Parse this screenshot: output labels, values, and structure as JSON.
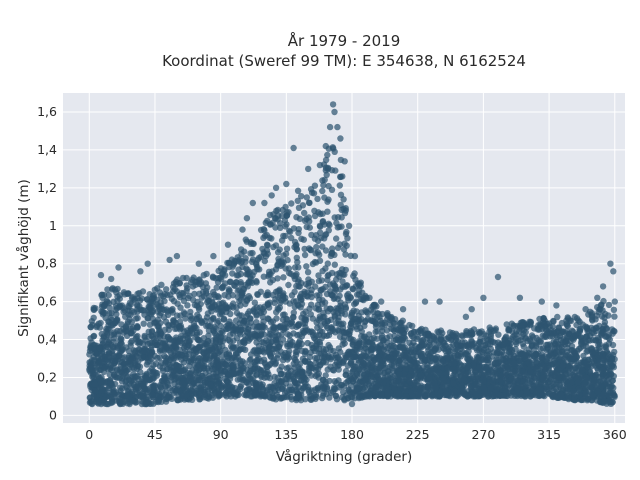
{
  "chart_data": {
    "type": "scatter",
    "title": "År 1979 - 2019",
    "subtitle": "Koordinat (Sweref 99 TM): E 354638, N 6162524",
    "xlabel": "Vågriktning (grader)",
    "ylabel": "Signifikant våghöjd (m)",
    "xlim": [
      -18,
      367
    ],
    "ylim": [
      -0.04,
      1.7
    ],
    "x_ticks": [
      0,
      45,
      90,
      135,
      180,
      225,
      270,
      315,
      360
    ],
    "x_tick_labels": [
      "0",
      "45",
      "90",
      "135",
      "180",
      "225",
      "270",
      "315",
      "360"
    ],
    "y_ticks": [
      0,
      0.2,
      0.4,
      0.6,
      0.8,
      1.0,
      1.2,
      1.4,
      1.6
    ],
    "y_tick_labels": [
      "0",
      "0,2",
      "0,4",
      "0,6",
      "0,8",
      "1",
      "1,2",
      "1,4",
      "1,6"
    ],
    "grid": true,
    "marker_color": "#2e5570",
    "plot_background": "#e5e8ef",
    "envelope": {
      "x": [
        0,
        10,
        20,
        30,
        45,
        60,
        75,
        90,
        100,
        110,
        120,
        130,
        140,
        150,
        160,
        165,
        170,
        175,
        180,
        190,
        200,
        225,
        250,
        270,
        300,
        315,
        330,
        345,
        355,
        360
      ],
      "y_max": [
        0.58,
        0.66,
        0.68,
        0.66,
        0.68,
        0.72,
        0.74,
        0.78,
        0.84,
        0.96,
        1.02,
        1.12,
        1.18,
        1.2,
        1.3,
        1.48,
        1.56,
        1.22,
        0.78,
        0.62,
        0.56,
        0.46,
        0.44,
        0.46,
        0.5,
        0.52,
        0.52,
        0.56,
        0.62,
        0.56
      ],
      "y_min": [
        0.06,
        0.06,
        0.06,
        0.06,
        0.06,
        0.08,
        0.08,
        0.1,
        0.1,
        0.1,
        0.1,
        0.08,
        0.08,
        0.08,
        0.08,
        0.08,
        0.08,
        0.08,
        0.08,
        0.1,
        0.1,
        0.1,
        0.1,
        0.1,
        0.1,
        0.1,
        0.08,
        0.08,
        0.06,
        0.06
      ]
    },
    "outliers": [
      [
        8,
        0.74
      ],
      [
        15,
        0.72
      ],
      [
        20,
        0.78
      ],
      [
        35,
        0.76
      ],
      [
        40,
        0.8
      ],
      [
        55,
        0.82
      ],
      [
        60,
        0.84
      ],
      [
        75,
        0.8
      ],
      [
        85,
        0.84
      ],
      [
        95,
        0.9
      ],
      [
        105,
        0.98
      ],
      [
        108,
        1.04
      ],
      [
        112,
        1.12
      ],
      [
        120,
        1.12
      ],
      [
        125,
        1.16
      ],
      [
        128,
        1.2
      ],
      [
        135,
        1.22
      ],
      [
        140,
        1.41
      ],
      [
        150,
        1.3
      ],
      [
        158,
        1.32
      ],
      [
        162,
        1.42
      ],
      [
        165,
        1.52
      ],
      [
        167,
        1.64
      ],
      [
        168,
        1.6
      ],
      [
        170,
        1.52
      ],
      [
        172,
        1.46
      ],
      [
        175,
        1.34
      ],
      [
        178,
        1.0
      ],
      [
        182,
        0.84
      ],
      [
        186,
        0.7
      ],
      [
        192,
        0.62
      ],
      [
        200,
        0.6
      ],
      [
        215,
        0.56
      ],
      [
        230,
        0.6
      ],
      [
        240,
        0.6
      ],
      [
        258,
        0.52
      ],
      [
        262,
        0.56
      ],
      [
        270,
        0.62
      ],
      [
        280,
        0.73
      ],
      [
        295,
        0.62
      ],
      [
        310,
        0.6
      ],
      [
        320,
        0.58
      ],
      [
        340,
        0.56
      ],
      [
        348,
        0.62
      ],
      [
        352,
        0.68
      ],
      [
        357,
        0.8
      ],
      [
        359,
        0.76
      ],
      [
        360,
        0.6
      ],
      [
        3,
        0.1
      ],
      [
        2,
        0.06
      ],
      [
        180,
        0.06
      ]
    ]
  }
}
